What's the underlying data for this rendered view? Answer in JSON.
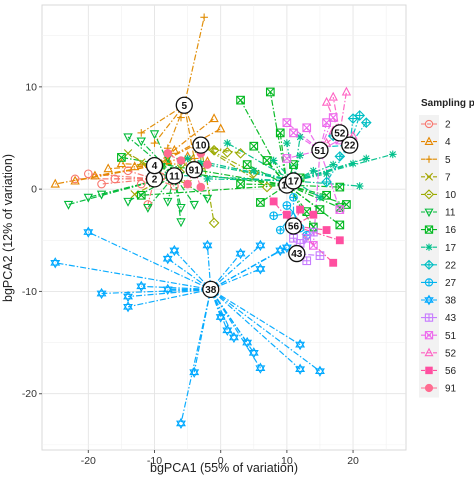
{
  "chart_data": {
    "type": "scatter",
    "title": "",
    "xlabel": "bgPCA1 (55% of variation)",
    "ylabel": "bgPCA2 (12% of variation)",
    "xlim": [
      -27,
      28
    ],
    "ylim": [
      -25.5,
      18
    ],
    "xticks": [
      -20,
      -10,
      0,
      10,
      20
    ],
    "yticks": [
      -20,
      -10,
      0,
      10
    ],
    "grid": true,
    "legend_position": "right",
    "legend_title": "Sampling point",
    "series": [
      {
        "name": "2",
        "shape": "circle",
        "color": "#F8766D",
        "centroid": [
          -10,
          1
        ],
        "centroid_label": "2",
        "points": [
          [
            -22,
            1
          ],
          [
            -20,
            1.5
          ],
          [
            -18,
            0.5
          ],
          [
            -16,
            1
          ],
          [
            -14,
            1.8
          ],
          [
            -12,
            0.5
          ],
          [
            -9,
            1.2
          ],
          [
            -7,
            0.3
          ],
          [
            -11,
            -1.5
          ]
        ]
      },
      {
        "name": "4",
        "shape": "triangle",
        "color": "#E58700",
        "centroid": [
          -10,
          2.3
        ],
        "centroid_label": "4",
        "points": [
          [
            -25,
            0.5
          ],
          [
            -22,
            0.8
          ],
          [
            -19,
            1.3
          ],
          [
            -17,
            2
          ],
          [
            -15,
            2.5
          ],
          [
            -13,
            2.2
          ],
          [
            -8,
            2.8
          ],
          [
            -5,
            3.2
          ],
          [
            -3,
            4.6
          ],
          [
            -1,
            6.9
          ],
          [
            0,
            5.9
          ],
          [
            -7,
            3.8
          ],
          [
            -2,
            2.7
          ]
        ]
      },
      {
        "name": "5",
        "shape": "plus",
        "color": "#E08B00",
        "centroid": [
          -5.5,
          8.2
        ],
        "centroid_label": "5",
        "points": [
          [
            -2.5,
            16.8
          ],
          [
            -12,
            5.5
          ],
          [
            -10,
            4.5
          ],
          [
            -6,
            7
          ],
          [
            -8,
            4
          ],
          [
            -4,
            3
          ],
          [
            -3,
            3.8
          ]
        ]
      },
      {
        "name": "7",
        "shape": "cross",
        "color": "#A3A500",
        "centroid": [
          -8,
          1.2
        ],
        "centroid_label": "",
        "points": [
          [
            -14,
            3.5
          ],
          [
            -12,
            2.6
          ],
          [
            -9,
            2.5
          ],
          [
            -6,
            2
          ],
          [
            -5,
            0.5
          ],
          [
            -13,
            -0.5
          ]
        ]
      },
      {
        "name": "10",
        "shape": "diamond",
        "color": "#9BAA00",
        "centroid": [
          -3,
          4.3
        ],
        "centroid_label": "10",
        "points": [
          [
            -5,
            2.6
          ],
          [
            -3,
            2.2
          ],
          [
            -1,
            3.8
          ],
          [
            1,
            3.6
          ],
          [
            3,
            3.5
          ],
          [
            5,
            1.6
          ],
          [
            7,
            0.2
          ],
          [
            -1,
            -3.3
          ]
        ]
      },
      {
        "name": "11",
        "shape": "triangle-down",
        "color": "#00BA38",
        "centroid": [
          -7,
          1.3
        ],
        "centroid_label": "11",
        "points": [
          [
            -14,
            5.1
          ],
          [
            -12,
            4.7
          ],
          [
            -10,
            5.4
          ],
          [
            -8,
            3.1
          ],
          [
            -6,
            2.7
          ],
          [
            -23,
            -1.5
          ],
          [
            -20,
            -0.8
          ],
          [
            -18,
            -0.5
          ],
          [
            -14,
            -1.2
          ],
          [
            -11,
            -1.8
          ],
          [
            -8,
            -1.2
          ],
          [
            -6,
            -1.8
          ],
          [
            -6,
            -3.2
          ],
          [
            -4,
            -1.5
          ],
          [
            -2,
            -0.9
          ],
          [
            -9,
            2.2
          ]
        ]
      },
      {
        "name": "16",
        "shape": "square-cross",
        "color": "#00B81F",
        "centroid": [
          10,
          0.4
        ],
        "centroid_label": "16",
        "points": [
          [
            3,
            8.7
          ],
          [
            5,
            4.2
          ],
          [
            7,
            2.8
          ],
          [
            7.5,
            9.5
          ],
          [
            9,
            5.5
          ],
          [
            11,
            2.4
          ],
          [
            12,
            1.1
          ],
          [
            13,
            -2.2
          ],
          [
            15,
            -2
          ],
          [
            16,
            -0.6
          ],
          [
            18,
            0.2
          ],
          [
            18,
            -1.8
          ],
          [
            19,
            -1.5
          ],
          [
            18,
            -3.5
          ],
          [
            14,
            -3.7
          ],
          [
            6,
            -1.3
          ],
          [
            3,
            0.5
          ],
          [
            -15,
            3.1
          ],
          [
            -12,
            -0.6
          ],
          [
            -7,
            1.7
          ],
          [
            4,
            2.4
          ]
        ]
      },
      {
        "name": "17",
        "shape": "asterisk",
        "color": "#00C08B",
        "centroid": [
          11,
          0.8
        ],
        "centroid_label": "17",
        "points": [
          [
            -5,
            3
          ],
          [
            -3,
            2.5
          ],
          [
            1,
            4.5
          ],
          [
            5,
            1.8
          ],
          [
            8,
            2.8
          ],
          [
            10,
            4.5
          ],
          [
            12,
            3.3
          ],
          [
            14,
            1.8
          ],
          [
            16,
            1.5
          ],
          [
            17,
            2.4
          ],
          [
            20,
            2.5
          ],
          [
            22,
            3
          ],
          [
            26,
            3.4
          ],
          [
            -8,
            1.4
          ],
          [
            -2,
            1
          ],
          [
            12,
            5.1
          ],
          [
            15,
            -0.8
          ],
          [
            21,
            0.3
          ]
        ]
      },
      {
        "name": "22",
        "shape": "diamond-plus",
        "color": "#00BFC4",
        "centroid": [
          19.5,
          4.3
        ],
        "centroid_label": "22",
        "points": [
          [
            15,
            4.1
          ],
          [
            17,
            5.2
          ],
          [
            20,
            6.9
          ],
          [
            21,
            7.2
          ],
          [
            22,
            6.5
          ],
          [
            18,
            3.2
          ],
          [
            16,
            0.7
          ]
        ]
      },
      {
        "name": "27",
        "shape": "circle-plus",
        "color": "#00B4EF",
        "centroid": [
          11,
          -2.3
        ],
        "centroid_label": "",
        "points": [
          [
            10,
            -1.6
          ],
          [
            12,
            -3.8
          ],
          [
            13,
            -4.5
          ],
          [
            9,
            -4
          ],
          [
            11,
            -0.8
          ],
          [
            8,
            -2.6
          ]
        ]
      },
      {
        "name": "38",
        "shape": "star-of-david",
        "color": "#00A9FF",
        "centroid": [
          -1.5,
          -9.8
        ],
        "centroid_label": "38",
        "points": [
          [
            -20,
            -4.2
          ],
          [
            -25,
            -7.2
          ],
          [
            -18,
            -10.2
          ],
          [
            -14,
            -10.5
          ],
          [
            -14,
            -11.5
          ],
          [
            -12,
            -9.5
          ],
          [
            -8,
            -6.8
          ],
          [
            -7,
            -6
          ],
          [
            -2,
            -5.5
          ],
          [
            3,
            -6.3
          ],
          [
            6,
            -7.8
          ],
          [
            6,
            -5.5
          ],
          [
            9,
            -6
          ],
          [
            0,
            -12.5
          ],
          [
            1,
            -13.8
          ],
          [
            2,
            -14.5
          ],
          [
            4,
            -15
          ],
          [
            5,
            -16
          ],
          [
            6,
            -17.5
          ],
          [
            12,
            -15.2
          ],
          [
            15,
            -17.8
          ],
          [
            12,
            -17.6
          ],
          [
            -4,
            -17.9
          ],
          [
            -6,
            -22.9
          ],
          [
            10,
            -5.7
          ],
          [
            -8,
            -9.8
          ]
        ]
      },
      {
        "name": "43",
        "shape": "square-plus",
        "color": "#C77CFF",
        "centroid": [
          11.5,
          -6.3
        ],
        "centroid_label": "43",
        "points": [
          [
            11,
            -4.8
          ],
          [
            12,
            -5.3
          ],
          [
            13,
            -4.8
          ],
          [
            14,
            -4.2
          ],
          [
            13,
            -7
          ],
          [
            15,
            -6.5
          ]
        ]
      },
      {
        "name": "51",
        "shape": "square-cross-violet",
        "color": "#ED68ED",
        "centroid": [
          15,
          3.8
        ],
        "centroid_label": "51",
        "points": [
          [
            10,
            6.5
          ],
          [
            10,
            3
          ],
          [
            13,
            6
          ],
          [
            16,
            6.5
          ],
          [
            17,
            7
          ],
          [
            18,
            4.8
          ],
          [
            14,
            -5.5
          ],
          [
            18,
            -2
          ],
          [
            11,
            5.5
          ]
        ]
      },
      {
        "name": "52",
        "shape": "triangle-pink",
        "color": "#FF61C3",
        "centroid": [
          18,
          5.5
        ],
        "centroid_label": "52",
        "points": [
          [
            16,
            8.5
          ],
          [
            17,
            9
          ],
          [
            19,
            9.5
          ],
          [
            16,
            4.5
          ],
          [
            20,
            5.2
          ],
          [
            17,
            5.7
          ]
        ]
      },
      {
        "name": "56",
        "shape": "square",
        "color": "#FF4FA0",
        "centroid": [
          11,
          -3.6
        ],
        "centroid_label": "56",
        "points": [
          [
            8,
            -1.2
          ],
          [
            10,
            -2.5
          ],
          [
            12,
            -2
          ],
          [
            14,
            -2.5
          ],
          [
            16,
            -4
          ],
          [
            17,
            -7.2
          ],
          [
            18,
            -5
          ]
        ]
      },
      {
        "name": "91",
        "shape": "dot",
        "color": "#FF6C91",
        "centroid": [
          -4,
          1.9
        ],
        "centroid_label": "91",
        "points": [
          [
            -8,
            3.5
          ],
          [
            -6,
            2.8
          ],
          [
            -3,
            3.5
          ],
          [
            -2,
            2.4
          ],
          [
            -5,
            0.5
          ],
          [
            -3,
            0.2
          ]
        ]
      }
    ]
  }
}
